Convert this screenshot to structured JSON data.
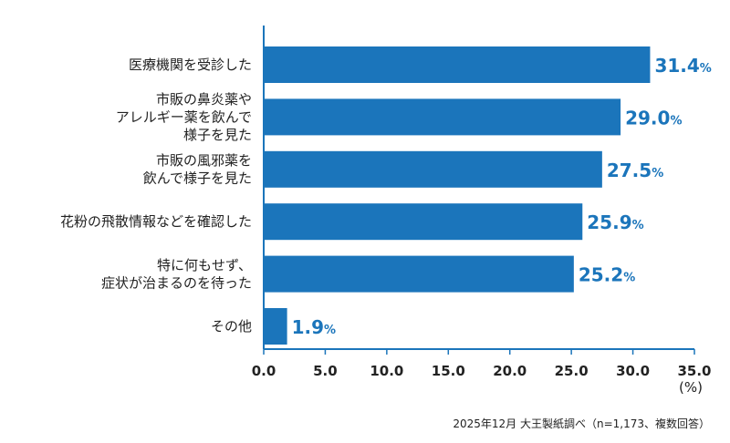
{
  "chart_data": {
    "type": "bar",
    "orientation": "horizontal",
    "categories": [
      [
        "医療機関を受診した"
      ],
      [
        "市販の鼻炎薬や",
        "アレルギー薬を飲んで",
        "様子を見た"
      ],
      [
        "市販の風邪薬を",
        "飲んで様子を見た"
      ],
      [
        "花粉の飛散情報などを確認した"
      ],
      [
        "特に何もせず、",
        "症状が治まるのを待った"
      ],
      [
        "その他"
      ]
    ],
    "values": [
      31.4,
      29.0,
      27.5,
      25.9,
      25.2,
      1.9
    ],
    "value_unit": "%",
    "xlim": [
      0,
      35
    ],
    "xticks": [
      "0.0",
      "5.0",
      "10.0",
      "15.0",
      "20.0",
      "25.0",
      "30.0",
      "35.0"
    ],
    "xlabel": "(%)",
    "grid": false,
    "bar_color": "#1b75bb",
    "label_color": "#1b75bb"
  },
  "source_note": "2025年12月 大王製紙調べ（n=1,173、複数回答）"
}
